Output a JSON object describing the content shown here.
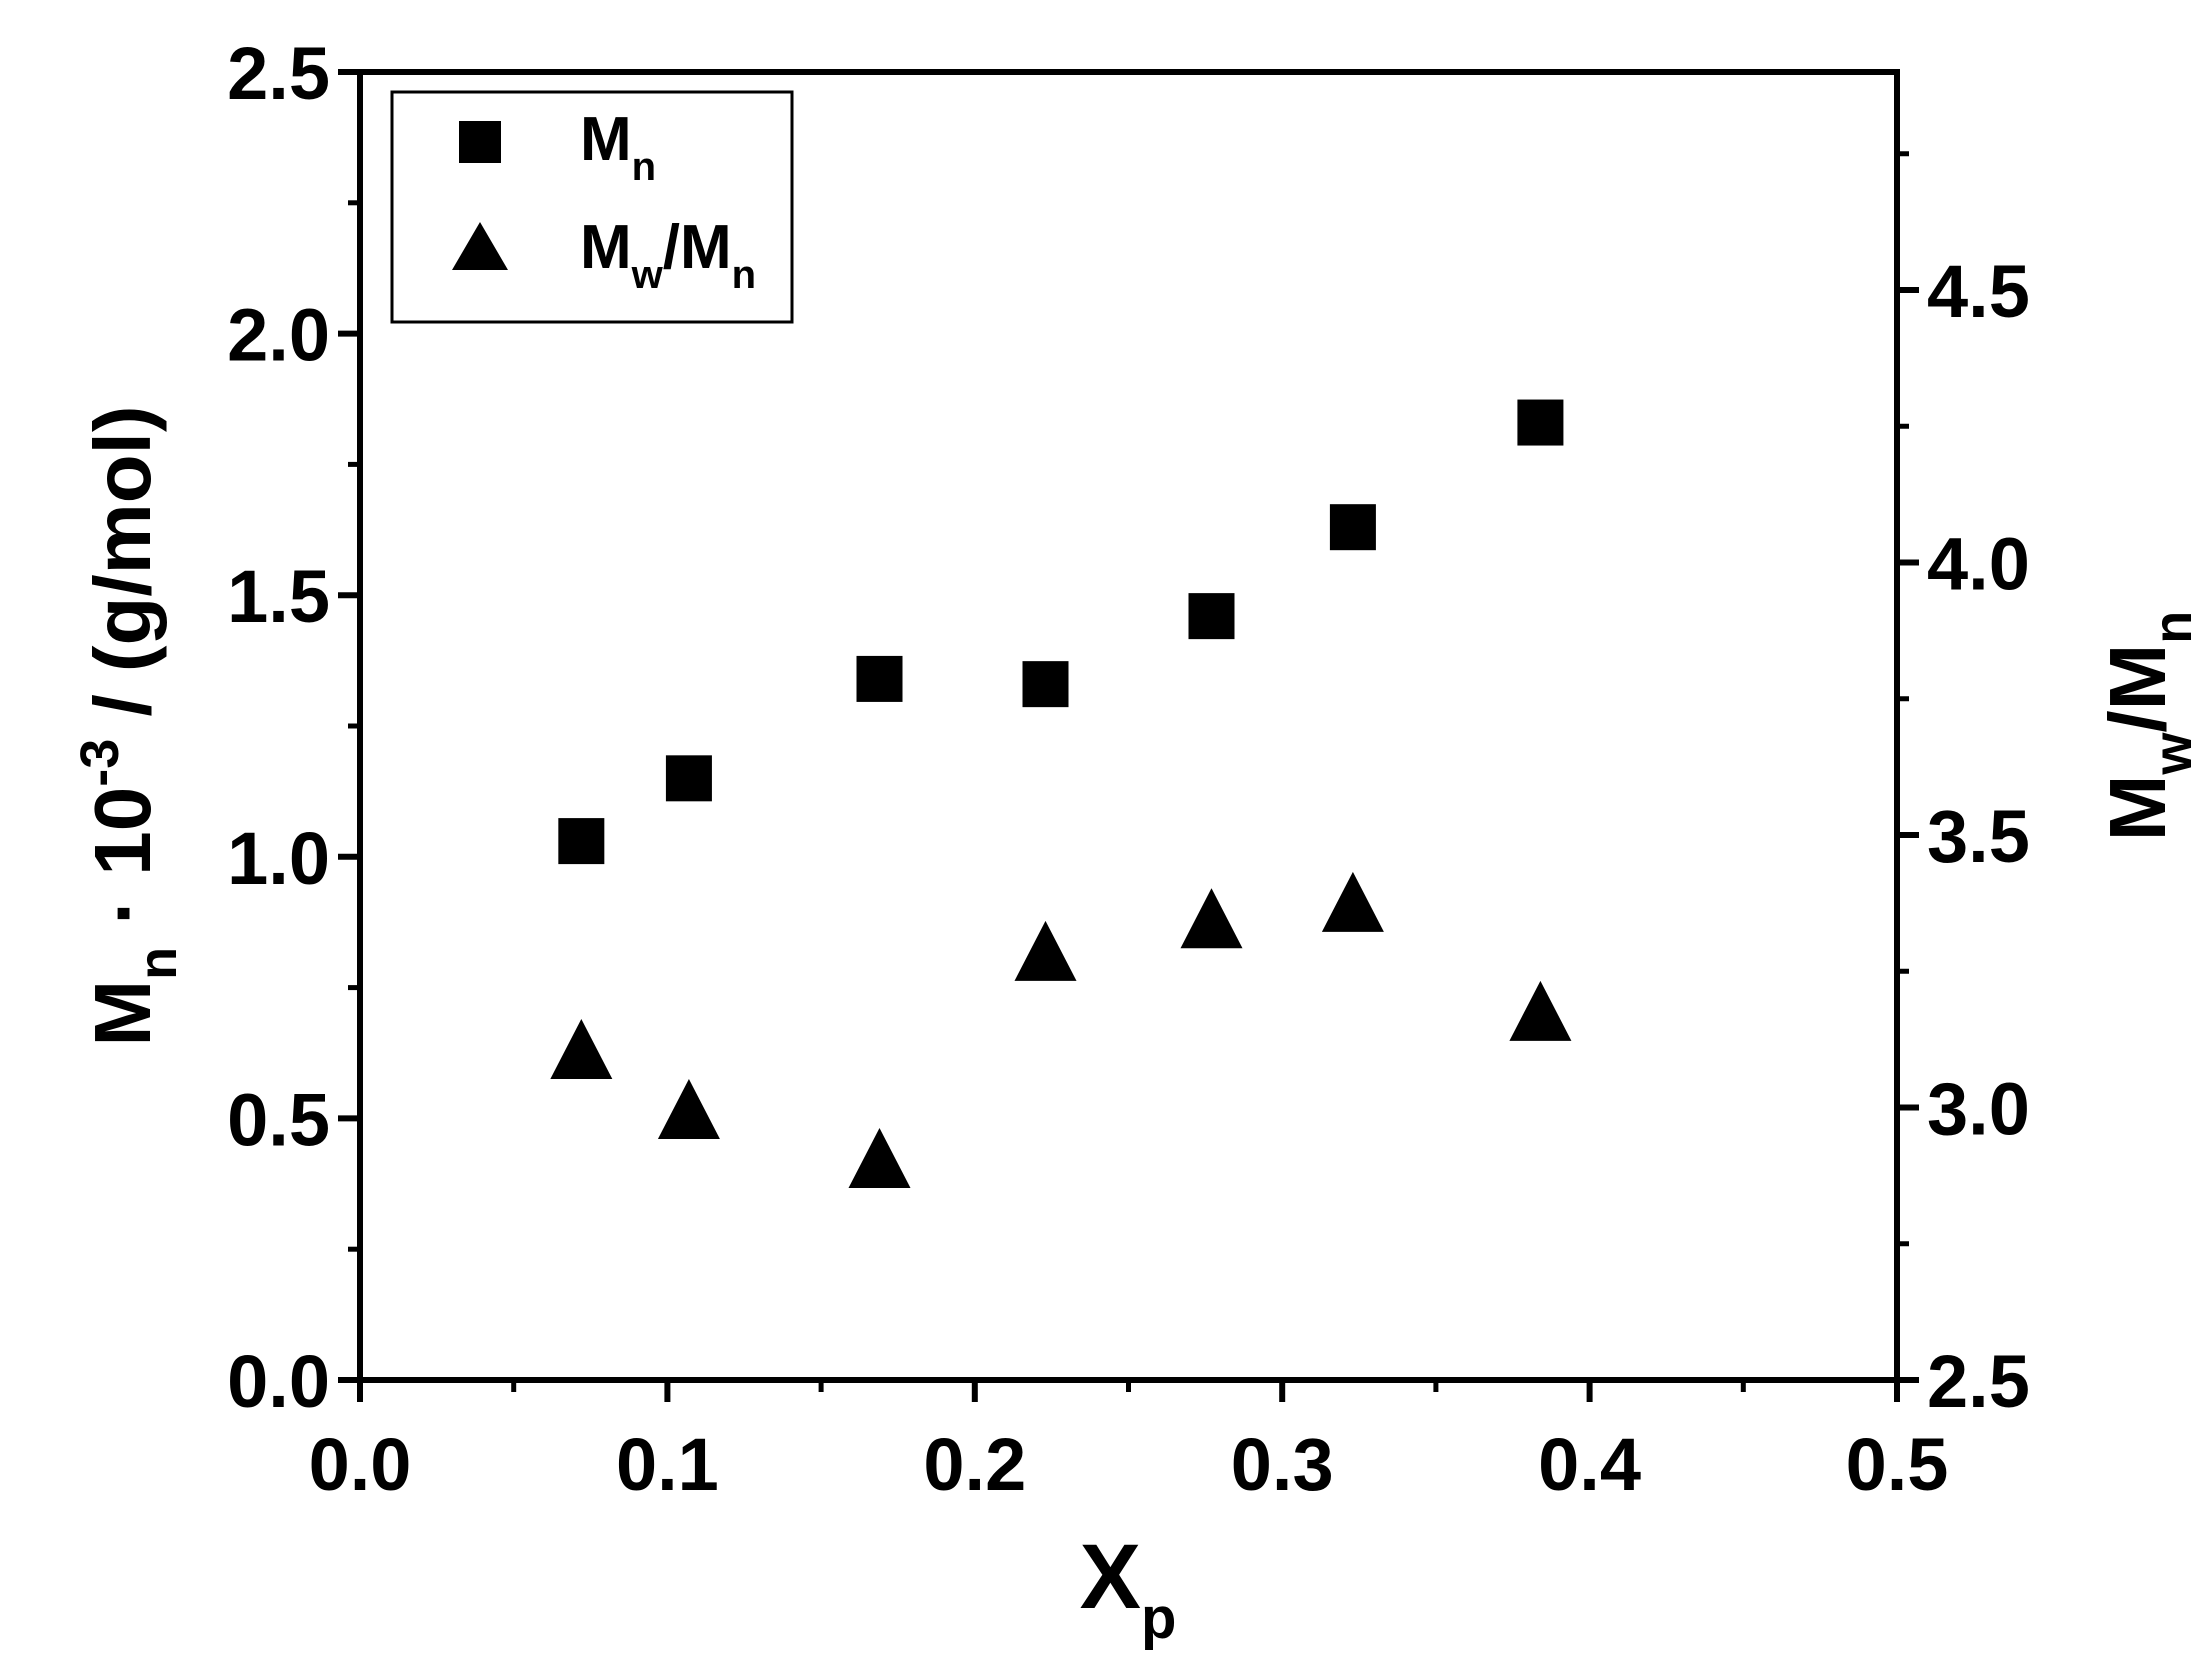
{
  "chart_data": {
    "type": "scatter",
    "x_axis": {
      "label_main": "X",
      "label_sub": "p",
      "range": [
        0.0,
        0.5
      ],
      "major_ticks": [
        0.0,
        0.1,
        0.2,
        0.3,
        0.4,
        0.5
      ],
      "tick_labels": [
        "0.0",
        "0.1",
        "0.2",
        "0.3",
        "0.4",
        "0.5"
      ]
    },
    "y_left": {
      "label_main": "M",
      "label_sub": "n",
      "label_mid": " · 10",
      "label_sup": "-3",
      "label_end": " / (g/mol)",
      "range": [
        0.0,
        2.5
      ],
      "major_ticks": [
        0.0,
        0.5,
        1.0,
        1.5,
        2.0,
        2.5
      ],
      "tick_labels": [
        "0.0",
        "0.5",
        "1.0",
        "1.5",
        "2.0",
        "2.5"
      ]
    },
    "y_right": {
      "label_main": "M",
      "label_sub": "w",
      "label_mid": "/M",
      "label_sub2": "n",
      "range": [
        2.5,
        4.9
      ],
      "major_ticks": [
        2.5,
        3.0,
        3.5,
        4.0,
        4.5
      ],
      "tick_labels": [
        "2.5",
        "3.0",
        "3.5",
        "4.0",
        "4.5"
      ]
    },
    "series": [
      {
        "name_main": "M",
        "name_sub": "n",
        "marker": "square",
        "axis": "left",
        "x": [
          0.072,
          0.107,
          0.169,
          0.223,
          0.277,
          0.323,
          0.384
        ],
        "y": [
          1.03,
          1.15,
          1.34,
          1.33,
          1.46,
          1.63,
          1.83
        ]
      },
      {
        "name_main": "M",
        "name_sub": "w",
        "name_mid": "/M",
        "name_sub2": "n",
        "marker": "triangle",
        "axis": "right",
        "x": [
          0.072,
          0.107,
          0.169,
          0.223,
          0.277,
          0.323,
          0.384
        ],
        "y": [
          3.1,
          2.99,
          2.9,
          3.28,
          3.34,
          3.37,
          3.17
        ]
      }
    ],
    "legend_position": "top-left",
    "grid": false,
    "color": "#000000"
  }
}
